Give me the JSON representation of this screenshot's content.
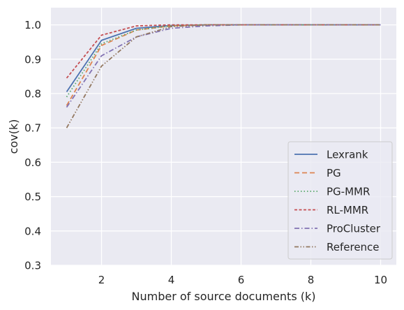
{
  "chart_data": {
    "type": "line",
    "title": "",
    "xlabel": "Number of source documents (k)",
    "ylabel": "cov(k)",
    "x": [
      1,
      2,
      3,
      4,
      5,
      6,
      7,
      8,
      9,
      10
    ],
    "xlim": [
      0.55,
      10.45
    ],
    "ylim": [
      0.3,
      1.05
    ],
    "xticks": [
      2,
      4,
      6,
      8,
      10
    ],
    "yticks": [
      0.3,
      0.4,
      0.5,
      0.6,
      0.7,
      0.8,
      0.9,
      1.0
    ],
    "xtick_labels": [
      "2",
      "4",
      "6",
      "8",
      "10"
    ],
    "ytick_labels": [
      "0.3",
      "0.4",
      "0.5",
      "0.6",
      "0.7",
      "0.8",
      "0.9",
      "1.0"
    ],
    "grid": true,
    "legend_position": "lower-right",
    "series": [
      {
        "name": "Lexrank",
        "color": "#4c72b0",
        "dash": "solid",
        "values": [
          0.805,
          0.955,
          0.99,
          0.998,
          1.0,
          1.0,
          1.0,
          1.0,
          1.0,
          1.0
        ]
      },
      {
        "name": "PG",
        "color": "#dd8452",
        "dash": "dashed",
        "values": [
          0.765,
          0.94,
          0.985,
          0.997,
          1.0,
          1.0,
          1.0,
          1.0,
          1.0,
          1.0
        ]
      },
      {
        "name": "PG-MMR",
        "color": "#55a868",
        "dash": "dotted",
        "values": [
          0.79,
          0.945,
          0.985,
          0.997,
          1.0,
          1.0,
          1.0,
          1.0,
          1.0,
          1.0
        ]
      },
      {
        "name": "RL-MMR",
        "color": "#c44e52",
        "dash": "densedash",
        "values": [
          0.845,
          0.97,
          0.997,
          1.0,
          1.0,
          1.0,
          1.0,
          1.0,
          1.0,
          1.0
        ]
      },
      {
        "name": "ProCluster",
        "color": "#8172b3",
        "dash": "dashdot",
        "values": [
          0.76,
          0.91,
          0.965,
          0.99,
          0.997,
          1.0,
          1.0,
          1.0,
          1.0,
          1.0
        ]
      },
      {
        "name": "Reference",
        "color": "#937860",
        "dash": "dashdotdot",
        "values": [
          0.7,
          0.88,
          0.965,
          0.995,
          1.0,
          1.0,
          1.0,
          1.0,
          1.0,
          1.0
        ]
      }
    ]
  }
}
